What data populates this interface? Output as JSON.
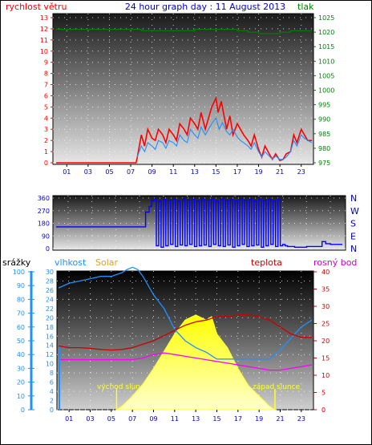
{
  "chart_data": [
    {
      "type": "line",
      "title": "24 hour graph day : 11 August 2013",
      "ylabel_left": "rychlost větru",
      "ylabel_right": "tlak",
      "x_ticks": [
        "01",
        "03",
        "05",
        "07",
        "09",
        "11",
        "13",
        "15",
        "17",
        "19",
        "21",
        "23"
      ],
      "xlim": [
        0,
        24
      ],
      "y_left_ticks": [
        "0",
        "1",
        "2",
        "3",
        "4",
        "5",
        "6",
        "7",
        "8",
        "9",
        "10",
        "11",
        "12",
        "13"
      ],
      "y_left_lim": [
        0,
        13
      ],
      "y_right_ticks": [
        "975",
        "980",
        "985",
        "990",
        "995",
        "1000",
        "1005",
        "1010",
        "1015",
        "1020",
        "1025"
      ],
      "y_right_lim": [
        975,
        1025
      ],
      "series": [
        {
          "name": "rychlost větru",
          "axis": "left",
          "color": "#ff0000",
          "x": [
            0,
            7.5,
            7.6,
            8.0,
            8.3,
            8.6,
            9.0,
            9.3,
            9.6,
            10.0,
            10.3,
            10.6,
            11.0,
            11.3,
            11.6,
            12.0,
            12.3,
            12.6,
            13.0,
            13.3,
            13.6,
            14.0,
            14.3,
            14.6,
            15.0,
            15.2,
            15.5,
            15.8,
            16.0,
            16.3,
            16.6,
            17.0,
            17.3,
            17.6,
            18.0,
            18.3,
            18.6,
            19.0,
            19.3,
            19.6,
            20.0,
            20.3,
            20.6,
            21.0,
            21.3,
            21.6,
            22.0,
            22.3,
            22.6,
            23.0,
            23.3,
            23.6,
            24.0
          ],
          "y": [
            0,
            0,
            0.4,
            2.5,
            1.5,
            3,
            2.2,
            2,
            3,
            2.5,
            1.8,
            3,
            2.5,
            2,
            3.5,
            3,
            2.5,
            4,
            3.5,
            3,
            4.5,
            3,
            4,
            5,
            5.8,
            4.5,
            5.5,
            4,
            3,
            4.2,
            2.5,
            3.5,
            3,
            2.5,
            2,
            1.5,
            2.5,
            1.2,
            0.5,
            1.5,
            0.8,
            0.3,
            0.8,
            0.2,
            0.3,
            0.8,
            1,
            2.5,
            1.8,
            3,
            2.5,
            2,
            2
          ]
        },
        {
          "name": "náraz",
          "axis": "left",
          "color": "#1e90ff",
          "x": [
            7.6,
            8.0,
            8.3,
            8.6,
            9.0,
            9.3,
            9.6,
            10.0,
            10.3,
            10.6,
            11.0,
            11.3,
            11.6,
            12.0,
            12.3,
            12.6,
            13.0,
            13.3,
            13.6,
            14.0,
            14.3,
            14.6,
            15.0,
            15.3,
            15.6,
            16.0,
            16.3,
            16.6,
            17.0,
            17.3,
            17.6,
            18.0,
            18.3,
            18.6,
            19.0,
            19.3,
            19.6,
            20.0,
            20.3,
            20.6,
            21.0,
            21.3,
            21.6,
            22.0,
            22.3,
            22.6,
            23.0,
            23.3,
            23.6,
            24.0
          ],
          "y": [
            0.5,
            1.5,
            1,
            1.8,
            1.5,
            1.2,
            2,
            1.8,
            1.3,
            2,
            1.8,
            1.5,
            2.5,
            2,
            1.8,
            3,
            2.5,
            2.2,
            3.2,
            2.5,
            3,
            3.5,
            4,
            3,
            3.6,
            2.8,
            2.5,
            3,
            2.3,
            2,
            1.8,
            1.5,
            1.2,
            1.8,
            1,
            0.5,
            1,
            0.6,
            0.3,
            0.6,
            0.3,
            0.3,
            0.5,
            1,
            2,
            1.5,
            2.5,
            2.2,
            2,
            1.8
          ]
        },
        {
          "name": "tlak",
          "axis": "right",
          "color": "#008000",
          "x": [
            0,
            2,
            4,
            6,
            8,
            9,
            10,
            12,
            13,
            14,
            16,
            17,
            18,
            19,
            20,
            21,
            22,
            23,
            24
          ],
          "y": [
            1021,
            1021,
            1021,
            1021,
            1020.5,
            1020.5,
            1020.5,
            1020.5,
            1021,
            1021,
            1021,
            1020.5,
            1020,
            1019.5,
            1019.5,
            1020,
            1020.5,
            1020.5,
            1020.5
          ]
        }
      ]
    },
    {
      "type": "line",
      "ylabel_right_letters": [
        "N",
        "W",
        "S",
        "E",
        "N"
      ],
      "x_ticks": [],
      "xlim": [
        0,
        24
      ],
      "y_left_ticks": [
        "0",
        "90",
        "180",
        "270",
        "360"
      ],
      "y_left_lim": [
        0,
        360
      ],
      "series": [
        {
          "name": "směr větru",
          "color": "#0000ff",
          "x": [
            0,
            7.3,
            7.5,
            7.8,
            8.0,
            8.2,
            8.4,
            8.6,
            8.8,
            9.0,
            9.2,
            9.4,
            9.6,
            9.8,
            10.0,
            10.2,
            10.4,
            10.6,
            10.8,
            11.0,
            11.2,
            11.4,
            11.6,
            11.8,
            12.0,
            12.2,
            12.4,
            12.6,
            12.8,
            13.0,
            13.2,
            13.4,
            13.6,
            13.8,
            14.0,
            14.2,
            14.4,
            14.6,
            14.8,
            15.0,
            15.2,
            15.4,
            15.6,
            15.8,
            16.0,
            16.2,
            16.4,
            16.6,
            16.8,
            17.0,
            17.2,
            17.4,
            17.6,
            17.8,
            18.0,
            18.2,
            18.4,
            18.6,
            18.8,
            19.0,
            19.2,
            19.4,
            20.0,
            21.0,
            22.0,
            22.3,
            22.6,
            23.0,
            23.5,
            24.0
          ],
          "y": [
            155,
            155,
            260,
            300,
            340,
            355,
            20,
            340,
            10,
            350,
            20,
            345,
            30,
            350,
            15,
            340,
            25,
            355,
            20,
            345,
            30,
            350,
            15,
            340,
            20,
            355,
            25,
            345,
            15,
            350,
            30,
            340,
            20,
            355,
            15,
            345,
            25,
            350,
            10,
            340,
            20,
            355,
            30,
            345,
            15,
            350,
            20,
            340,
            25,
            355,
            10,
            345,
            20,
            350,
            30,
            340,
            15,
            355,
            20,
            30,
            20,
            15,
            10,
            15,
            15,
            50,
            35,
            30,
            30,
            30
          ]
        }
      ]
    },
    {
      "type": "area",
      "labels": {
        "srazky": "srážky",
        "vlhkost": "vlhkost",
        "solar": "Solar",
        "teplota": "teplota",
        "rosny_bod": "rosný bod",
        "vychod": "východ slun",
        "zapad": "západ slunce"
      },
      "x_ticks": [
        "01",
        "03",
        "05",
        "07",
        "09",
        "11",
        "13",
        "15",
        "17",
        "19",
        "21",
        "23"
      ],
      "xlim": [
        0,
        24
      ],
      "y_rain_ticks": [
        "0",
        "10",
        "20",
        "30",
        "40",
        "50",
        "60",
        "70",
        "80",
        "90",
        "100"
      ],
      "y_rain_lim": [
        0,
        100
      ],
      "y_left_ticks": [
        "0",
        "2",
        "4",
        "6",
        "8",
        "10",
        "12",
        "14",
        "16",
        "18",
        "20",
        "22",
        "24",
        "26",
        "28",
        "30"
      ],
      "y_left_lim": [
        0,
        30
      ],
      "y_right_ticks": [
        "0",
        "5",
        "10",
        "15",
        "20",
        "25",
        "30",
        "35",
        "40"
      ],
      "y_right_lim": [
        0,
        40
      ],
      "sunrise_hour": 5.5,
      "sunset_hour": 20.5,
      "series": [
        {
          "name": "vlhkost",
          "axis": "left",
          "color": "#1e90ff",
          "x": [
            0,
            1,
            2,
            3,
            4,
            5,
            6,
            6.5,
            7,
            7.5,
            8,
            9,
            10,
            11,
            12,
            13,
            14,
            15,
            16,
            17,
            18,
            19,
            20,
            21,
            22,
            23,
            24
          ],
          "y": [
            26.5,
            27.5,
            28,
            28.5,
            29,
            29,
            29.8,
            30.5,
            31,
            30.5,
            29,
            25,
            22,
            17.5,
            15,
            13.5,
            12.5,
            11,
            11,
            11,
            11,
            11,
            11,
            13,
            15.5,
            18,
            19.5
          ]
        },
        {
          "name": "teplota",
          "axis": "right",
          "color": "#cc0000",
          "x": [
            0,
            1,
            2,
            3,
            4,
            5,
            6,
            7,
            8,
            9,
            10,
            11,
            12,
            13,
            14,
            15,
            16,
            17,
            18,
            19,
            20,
            21,
            22,
            23,
            24
          ],
          "y": [
            18.5,
            18,
            18,
            17.8,
            17.5,
            17.3,
            17.5,
            18,
            19,
            20,
            21.5,
            23,
            24.5,
            25.5,
            26,
            27,
            27,
            27.5,
            27.5,
            27,
            26,
            24,
            22,
            21,
            21
          ]
        },
        {
          "name": "rosný bod",
          "axis": "right",
          "color": "#ff00ff",
          "x": [
            0,
            1,
            2,
            3,
            4,
            5,
            6,
            7,
            8,
            9,
            10,
            11,
            12,
            13,
            14,
            15,
            16,
            17,
            18,
            19,
            20,
            21,
            22,
            23,
            24
          ],
          "y": [
            14.5,
            14.5,
            14.5,
            14.5,
            14.5,
            14.5,
            14.5,
            14.5,
            15,
            16,
            16.5,
            16,
            15.5,
            15,
            14.5,
            14,
            13.5,
            13,
            12.5,
            12,
            11.5,
            11.5,
            12,
            12.5,
            13
          ]
        },
        {
          "name": "Solar",
          "axis": "right",
          "color": "#ffff33",
          "x": [
            5.5,
            6,
            7,
            8,
            9,
            10,
            11,
            12,
            13,
            14,
            14.5,
            15,
            15.5,
            16,
            17,
            18,
            19,
            20,
            20.5
          ],
          "y": [
            0,
            1,
            4,
            7.5,
            12,
            17,
            22,
            26,
            27.5,
            26,
            27,
            22,
            20,
            18,
            12,
            7,
            4,
            1,
            0
          ]
        },
        {
          "name": "srážky",
          "axis": "rain",
          "color": "#1e90ff",
          "x": [
            0
          ],
          "y": [
            45
          ]
        }
      ]
    }
  ]
}
